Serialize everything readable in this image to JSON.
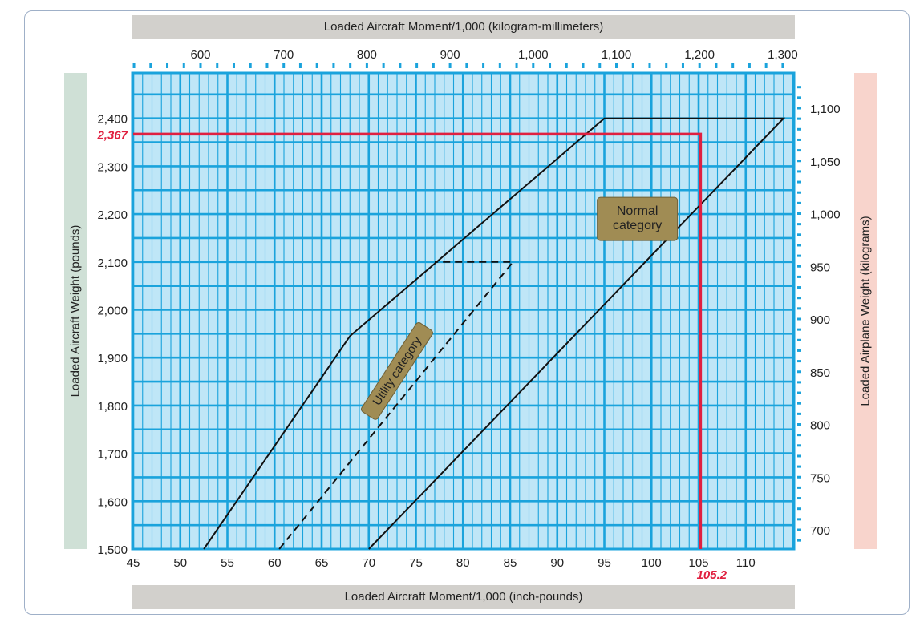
{
  "chart_data": {
    "type": "line",
    "axes": {
      "x_bottom": {
        "label": "Loaded Aircraft Moment/1,000 (inch-pounds)",
        "range": [
          45,
          115
        ],
        "ticks": [
          45,
          50,
          55,
          60,
          65,
          70,
          75,
          80,
          85,
          90,
          95,
          100,
          105,
          110
        ],
        "tick_labels": [
          "45",
          "50",
          "55",
          "60",
          "65",
          "70",
          "75",
          "80",
          "85",
          "90",
          "95",
          "100",
          "105",
          "110"
        ]
      },
      "x_top": {
        "label": "Loaded Aircraft Moment/1,000 (kilogram-millimeters)",
        "ticks": [
          600,
          700,
          800,
          900,
          1000,
          1100,
          1200,
          1300
        ],
        "tick_labels": [
          "600",
          "700",
          "800",
          "900",
          "1,000",
          "1,100",
          "1,200",
          "1,300"
        ]
      },
      "y_left": {
        "label": "Loaded  Aircraft Weight (pounds)",
        "range": [
          1500,
          2485
        ],
        "ticks": [
          1500,
          1600,
          1700,
          1800,
          1900,
          2000,
          2100,
          2200,
          2300,
          2400
        ],
        "tick_labels": [
          "1,500",
          "1,600",
          "1,700",
          "1,800",
          "1,900",
          "2,000",
          "2,100",
          "2,200",
          "2,300",
          "2,400"
        ]
      },
      "y_right": {
        "label": "Loaded Airplane Weight (kilograms)",
        "ticks": [
          700,
          750,
          800,
          850,
          900,
          950,
          1000,
          1050,
          1100
        ],
        "tick_labels": [
          "700",
          "750",
          "800",
          "850",
          "900",
          "950",
          "1,000",
          "1,050",
          "1,100"
        ]
      }
    },
    "grid": true,
    "series": [
      {
        "style": "solid",
        "points": [
          [
            52.5,
            1500
          ],
          [
            68,
            1945
          ],
          [
            95,
            2400
          ],
          [
            114,
            2400
          ],
          [
            70,
            1500
          ]
        ]
      },
      {
        "style": "dashed",
        "points": [
          [
            60.5,
            1500
          ],
          [
            85.3,
            2100
          ],
          [
            77,
            2100
          ]
        ]
      },
      {
        "style": "highlight",
        "points": [
          [
            45,
            2367
          ],
          [
            105.2,
            2367
          ],
          [
            105.2,
            1500
          ]
        ]
      }
    ],
    "annotations": [
      {
        "text": "Normal\ncategory",
        "x": 98.5,
        "y": 2190
      },
      {
        "text": "Utility category",
        "x": 73,
        "y": 1872
      }
    ],
    "highlight_labels": {
      "weight": "2,367",
      "moment": "105.2"
    },
    "colors": {
      "grid": "#1aa3dc",
      "background": "#bfe6f7",
      "highlight": "#e02040",
      "lines": "#111111",
      "label_bg": "#a08c54"
    }
  }
}
